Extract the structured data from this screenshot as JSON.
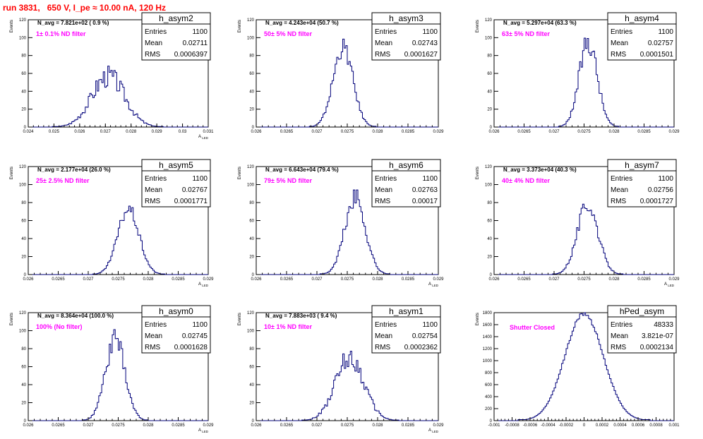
{
  "header": {
    "run_label": "run 3831,",
    "hv_label": "650 V,",
    "current_label": "I_pe ≈ 10.00 nA,",
    "rate_label": "120 Hz"
  },
  "colors": {
    "histogram": "#00007a",
    "title": "#ff0000",
    "annotation": "#ff00ff",
    "axis": "#000000"
  },
  "chart_data": [
    {
      "type": "bar",
      "name": "h_asym2",
      "ylabel": "Events",
      "xlabel": "A_{LED}",
      "xlim": [
        0.024,
        0.031
      ],
      "ylim": [
        0,
        120
      ],
      "xticks": [
        "0.024",
        "0.025",
        "0.026",
        "0.027",
        "0.028",
        "0.029",
        "0.03",
        "0.031"
      ],
      "yticks": [
        "0",
        "20",
        "40",
        "60",
        "80",
        "100",
        "120"
      ],
      "navg": "N_avg = 7.821e+02 ( 0.9 %)",
      "filter": "1± 0.1% ND filter",
      "stats": {
        "Entries": "1100",
        "Mean": "0.02711",
        "RMS": "0.0006397"
      },
      "mean": 0.02711,
      "rms": 0.0006397,
      "peak": 57,
      "noise": 0.22
    },
    {
      "type": "bar",
      "name": "h_asym3",
      "ylabel": "Events",
      "xlabel": "",
      "xlim": [
        0.026,
        0.029
      ],
      "ylim": [
        0,
        120
      ],
      "xticks": [
        "0.026",
        "0.0265",
        "0.027",
        "0.0275",
        "0.028",
        "0.0285",
        "0.029"
      ],
      "yticks": [
        "0",
        "20",
        "40",
        "60",
        "80",
        "100",
        "120"
      ],
      "navg": "N_avg = 4.243e+04 (50.7 %)",
      "filter": "50± 5% ND filter",
      "stats": {
        "Entries": "1100",
        "Mean": "0.02743",
        "RMS": "0.0001627"
      },
      "mean": 0.02743,
      "rms": 0.0001627,
      "peak": 89,
      "noise": 0.12
    },
    {
      "type": "bar",
      "name": "h_asym4",
      "ylabel": "Events",
      "xlabel": "",
      "xlim": [
        0.026,
        0.029
      ],
      "ylim": [
        0,
        120
      ],
      "xticks": [
        "0.026",
        "0.0265",
        "0.027",
        "0.0275",
        "0.028",
        "0.0285",
        "0.029"
      ],
      "yticks": [
        "0",
        "20",
        "40",
        "60",
        "80",
        "100",
        "120"
      ],
      "navg": "N_avg = 5.297e+04 (63.3 %)",
      "filter": "63± 5% ND filter",
      "stats": {
        "Entries": "1100",
        "Mean": "0.02757",
        "RMS": "0.0001501"
      },
      "mean": 0.02757,
      "rms": 0.0001501,
      "peak": 96,
      "noise": 0.14
    },
    {
      "type": "bar",
      "name": "h_asym5",
      "ylabel": "Events",
      "xlabel": "A_{LED}",
      "xlim": [
        0.026,
        0.029
      ],
      "ylim": [
        0,
        120
      ],
      "xticks": [
        "0.026",
        "0.0265",
        "0.027",
        "0.0275",
        "0.028",
        "0.0285",
        "0.029"
      ],
      "yticks": [
        "0",
        "20",
        "40",
        "60",
        "80",
        "100",
        "120"
      ],
      "navg": "N_avg = 2.177e+04 (26.0 %)",
      "filter": "25± 2.5% ND filter",
      "stats": {
        "Entries": "1100",
        "Mean": "0.02767",
        "RMS": "0.0001771"
      },
      "mean": 0.02767,
      "rms": 0.0001771,
      "peak": 73,
      "noise": 0.1
    },
    {
      "type": "bar",
      "name": "h_asym6",
      "ylabel": "Events",
      "xlabel": "A_{LED}",
      "xlim": [
        0.026,
        0.029
      ],
      "ylim": [
        0,
        120
      ],
      "xticks": [
        "0.026",
        "0.0265",
        "0.027",
        "0.0275",
        "0.028",
        "0.0285",
        "0.029"
      ],
      "yticks": [
        "0",
        "20",
        "40",
        "60",
        "80",
        "100",
        "120"
      ],
      "navg": "N_avg = 6.643e+04 (79.4 %)",
      "filter": "79± 5% ND filter",
      "stats": {
        "Entries": "1100",
        "Mean": "0.02763",
        "RMS": "0.00017"
      },
      "mean": 0.02763,
      "rms": 0.00017,
      "peak": 85,
      "noise": 0.14
    },
    {
      "type": "bar",
      "name": "h_asym7",
      "ylabel": "Events",
      "xlabel": "A_{LED}",
      "xlim": [
        0.026,
        0.029
      ],
      "ylim": [
        0,
        120
      ],
      "xticks": [
        "0.026",
        "0.0265",
        "0.027",
        "0.0275",
        "0.028",
        "0.0285",
        "0.029"
      ],
      "yticks": [
        "0",
        "20",
        "40",
        "60",
        "80",
        "100",
        "120"
      ],
      "navg": "N_avg = 3.373e+04 (40.3 %)",
      "filter": "40± 4% ND filter",
      "stats": {
        "Entries": "1100",
        "Mean": "0.02756",
        "RMS": "0.0001727"
      },
      "mean": 0.02756,
      "rms": 0.0001727,
      "peak": 78,
      "noise": 0.12
    },
    {
      "type": "bar",
      "name": "h_asym0",
      "ylabel": "Events",
      "xlabel": "A_{LED}",
      "xlim": [
        0.026,
        0.029
      ],
      "ylim": [
        0,
        120
      ],
      "xticks": [
        "0.026",
        "0.0265",
        "0.027",
        "0.0275",
        "0.028",
        "0.0285",
        "0.029"
      ],
      "yticks": [
        "0",
        "20",
        "40",
        "60",
        "80",
        "100",
        "120"
      ],
      "navg": "N_avg = 8.364e+04 (100.0 %)",
      "filter": "100% (No filter)",
      "stats": {
        "Entries": "1100",
        "Mean": "0.02745",
        "RMS": "0.0001628"
      },
      "mean": 0.02745,
      "rms": 0.0001628,
      "peak": 90,
      "noise": 0.14
    },
    {
      "type": "bar",
      "name": "h_asym1",
      "ylabel": "Events",
      "xlabel": "A_{LED}",
      "xlim": [
        0.026,
        0.029
      ],
      "ylim": [
        0,
        120
      ],
      "xticks": [
        "0.026",
        "0.0265",
        "0.027",
        "0.0275",
        "0.028",
        "0.0285",
        "0.029"
      ],
      "yticks": [
        "0",
        "20",
        "40",
        "60",
        "80",
        "100",
        "120"
      ],
      "navg": "N_avg = 7.883e+03 ( 9.4 %)",
      "filter": "10± 1% ND filter",
      "stats": {
        "Entries": "1100",
        "Mean": "0.02754",
        "RMS": "0.0002362"
      },
      "mean": 0.02754,
      "rms": 0.0002362,
      "peak": 70,
      "noise": 0.18
    },
    {
      "type": "bar",
      "name": "hPed_asym",
      "ylabel": "Events",
      "xlabel": "",
      "xlim": [
        -0.001,
        0.001
      ],
      "ylim": [
        0,
        1800
      ],
      "xticks": [
        "-0.001",
        "-0.0008",
        "-0.0006",
        "-0.0004",
        "-0.0002",
        "0",
        "0.0002",
        "0.0004",
        "0.0006",
        "0.0008",
        "0.001"
      ],
      "yticks": [
        "0",
        "200",
        "400",
        "600",
        "800",
        "1000",
        "1200",
        "1400",
        "1600",
        "1800"
      ],
      "navg": "",
      "filter": "Shutter Closed",
      "stats": {
        "Entries": "48333",
        "Mean": "3.821e-07",
        "RMS": "0.0002134"
      },
      "mean": 3.821e-07,
      "rms": 0.0002134,
      "peak": 1780,
      "noise": 0.02
    }
  ]
}
